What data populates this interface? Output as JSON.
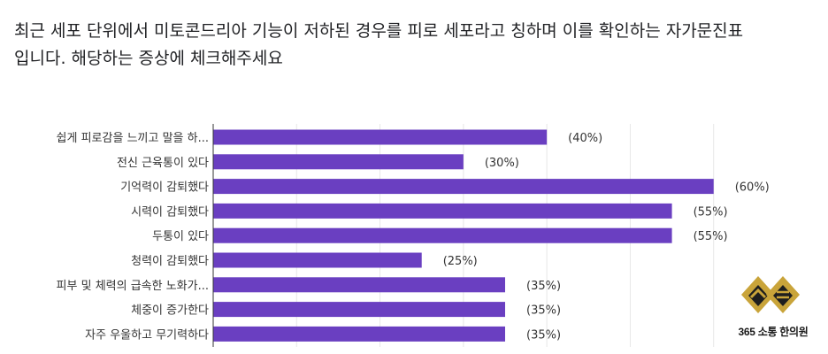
{
  "title": "최근 세포 단위에서 미토콘드리아 기능이 저하된 경우를 피로 세포라고 칭하며 이를 확인하는 자가문진표입니다. 해당하는 증상에 체크해주세요",
  "logo": {
    "text": "365 소통 한의원",
    "colors": {
      "gold": "#c9a43a",
      "dark": "#1e1e1e"
    }
  },
  "chart_data": {
    "type": "bar",
    "orientation": "horizontal",
    "categories": [
      "쉽게 피로감을 느끼고 말을 하...",
      "전신 근육통이 있다",
      "기억력이 감퇴했다",
      "시력이 감퇴했다",
      "두통이 있다",
      "청력이 감퇴했다",
      "피부 및 체력의 급속한 노화가...",
      "체중이 증가한다",
      "자주 우울하고 무기력하다"
    ],
    "values": [
      40,
      30,
      60,
      55,
      55,
      25,
      35,
      35,
      35
    ],
    "value_labels": [
      "(40%)",
      "(30%)",
      "(60%)",
      "(55%)",
      "(55%)",
      "(25%)",
      "(35%)",
      "(35%)",
      "(35%)"
    ],
    "xlim": [
      0,
      63
    ],
    "grid": true,
    "bar_color": "#6a3fc1"
  }
}
